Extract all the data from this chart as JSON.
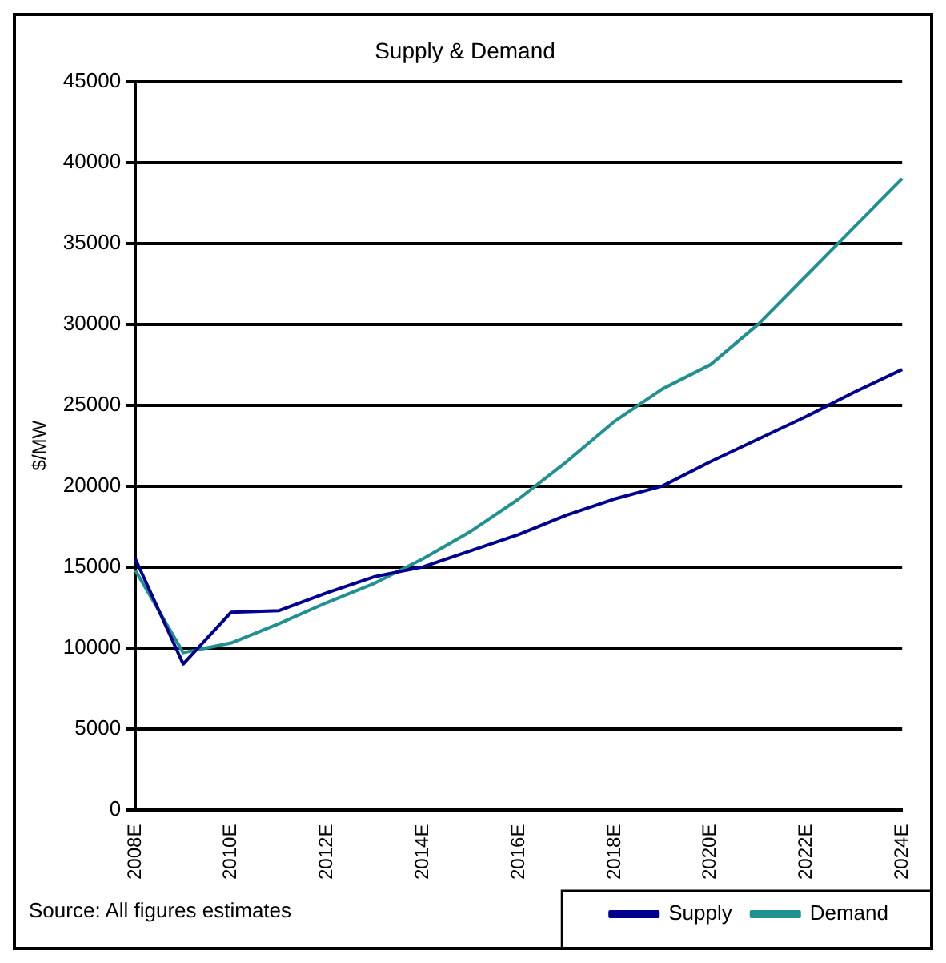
{
  "chart_data": {
    "type": "line",
    "title": "Supply & Demand",
    "ylabel": "$/MW",
    "categories": [
      "2008E",
      null,
      "2010E",
      null,
      "2012E",
      null,
      "2014E",
      null,
      "2016E",
      null,
      "2018E",
      null,
      "2020E",
      null,
      "2022E",
      null,
      "2024E"
    ],
    "series": [
      {
        "name": "Supply",
        "color": "#000090",
        "values": [
          15500,
          9000,
          12200,
          12300,
          13400,
          14400,
          15000,
          16000,
          17000,
          18200,
          19200,
          20000,
          21500,
          22900,
          24300,
          25800,
          27200
        ]
      },
      {
        "name": "Demand",
        "color": "#209090",
        "values": [
          14800,
          9700,
          10300,
          11500,
          12800,
          14000,
          15500,
          17200,
          19200,
          21500,
          24000,
          26000,
          27500,
          30000,
          33000,
          36000,
          39000
        ]
      }
    ],
    "ylim": [
      0,
      45000
    ],
    "yticks": [
      0,
      5000,
      10000,
      15000,
      20000,
      25000,
      30000,
      35000,
      40000,
      45000
    ],
    "grid": "y",
    "legend": "bottom right",
    "marker": "none",
    "line_style": "solid",
    "annotations": [
      "Source: All figures estimates"
    ]
  }
}
